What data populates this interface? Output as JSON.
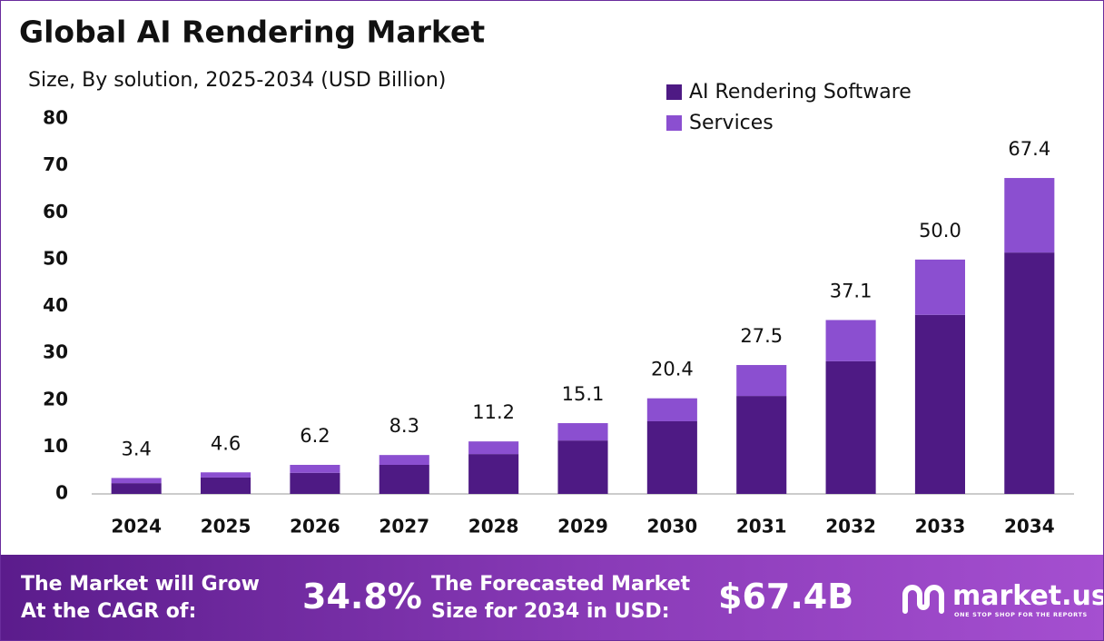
{
  "chart_data": {
    "type": "stacked-bar",
    "title": "Global AI Rendering Market",
    "subtitle": "Size, By solution, 2025-2034 (USD Billion)",
    "categories": [
      "2024",
      "2025",
      "2026",
      "2027",
      "2028",
      "2029",
      "2030",
      "2031",
      "2032",
      "2033",
      "2034"
    ],
    "series": [
      {
        "name": "AI Rendering Software",
        "color": "#4e1a84",
        "values": [
          2.3,
          3.5,
          4.5,
          6.2,
          8.5,
          11.4,
          15.5,
          20.9,
          28.3,
          38.2,
          51.5
        ]
      },
      {
        "name": "Services",
        "color": "#8b4fd0",
        "values": [
          1.1,
          1.1,
          1.7,
          2.1,
          2.7,
          3.7,
          4.9,
          6.6,
          8.8,
          11.8,
          15.9
        ]
      }
    ],
    "totals": [
      3.4,
      4.6,
      6.2,
      8.3,
      11.2,
      15.1,
      20.4,
      27.5,
      37.1,
      50.0,
      67.4
    ],
    "total_labels": [
      "3.4",
      "4.6",
      "6.2",
      "8.3",
      "11.2",
      "15.1",
      "20.4",
      "27.5",
      "37.1",
      "50.0",
      "67.4"
    ],
    "ylim": [
      0,
      80
    ],
    "yticks": [
      0,
      10,
      20,
      30,
      40,
      50,
      60,
      70,
      80
    ],
    "grid": false,
    "legend": "top-right"
  },
  "footer": {
    "cagr_label": [
      "The Market will Grow",
      "At the CAGR of:"
    ],
    "cagr": "34.8%",
    "forecast_label": [
      "The Forecasted Market",
      "Size for 2034 in USD:"
    ],
    "forecast": "$67.4B",
    "brand": "market.us",
    "tagline": "ONE STOP SHOP FOR THE REPORTS"
  }
}
